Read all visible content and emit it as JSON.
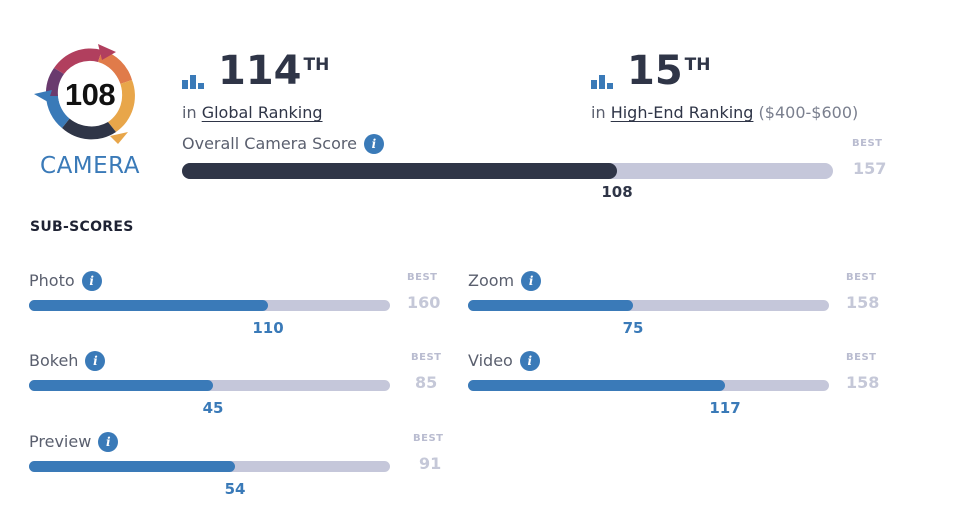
{
  "badge": {
    "score": "108",
    "label": "CAMERA",
    "colors": {
      "red": "#b13f5e",
      "orange": "#e07b4a",
      "yellow": "#e8a64a",
      "blue": "#3a7ab8",
      "dark": "#2f3547",
      "purple": "#6a3a6e"
    }
  },
  "global_rank": {
    "number": "114",
    "suffix": "TH",
    "prefix": "in",
    "link": "Global Ranking"
  },
  "segment_rank": {
    "number": "15",
    "suffix": "TH",
    "prefix": "in",
    "link": "High-End Ranking",
    "range": "($400-$600)"
  },
  "overall": {
    "label": "Overall Camera Score",
    "value": 108,
    "value_text": "108",
    "best_label": "BEST",
    "best": 157,
    "best_text": "157"
  },
  "subscores_title": "SUB-SCORES",
  "subscores": [
    {
      "label": "Photo",
      "value": 110,
      "value_text": "110",
      "best_label": "BEST",
      "best": 160,
      "best_text": "160"
    },
    {
      "label": "Zoom",
      "value": 75,
      "value_text": "75",
      "best_label": "BEST",
      "best": 158,
      "best_text": "158"
    },
    {
      "label": "Bokeh",
      "value": 45,
      "value_text": "45",
      "best_label": "BEST",
      "best": 85,
      "best_text": "85"
    },
    {
      "label": "Video",
      "value": 117,
      "value_text": "117",
      "best_label": "BEST",
      "best": 158,
      "best_text": "158"
    },
    {
      "label": "Preview",
      "value": 54,
      "value_text": "54",
      "best_label": "BEST",
      "best": 91,
      "best_text": "91"
    }
  ],
  "info_glyph": "i",
  "colors": {
    "accent": "#3a7ab8",
    "dark": "#2f3547",
    "track": "#c5c7da",
    "muted": "#b9bcd0"
  }
}
